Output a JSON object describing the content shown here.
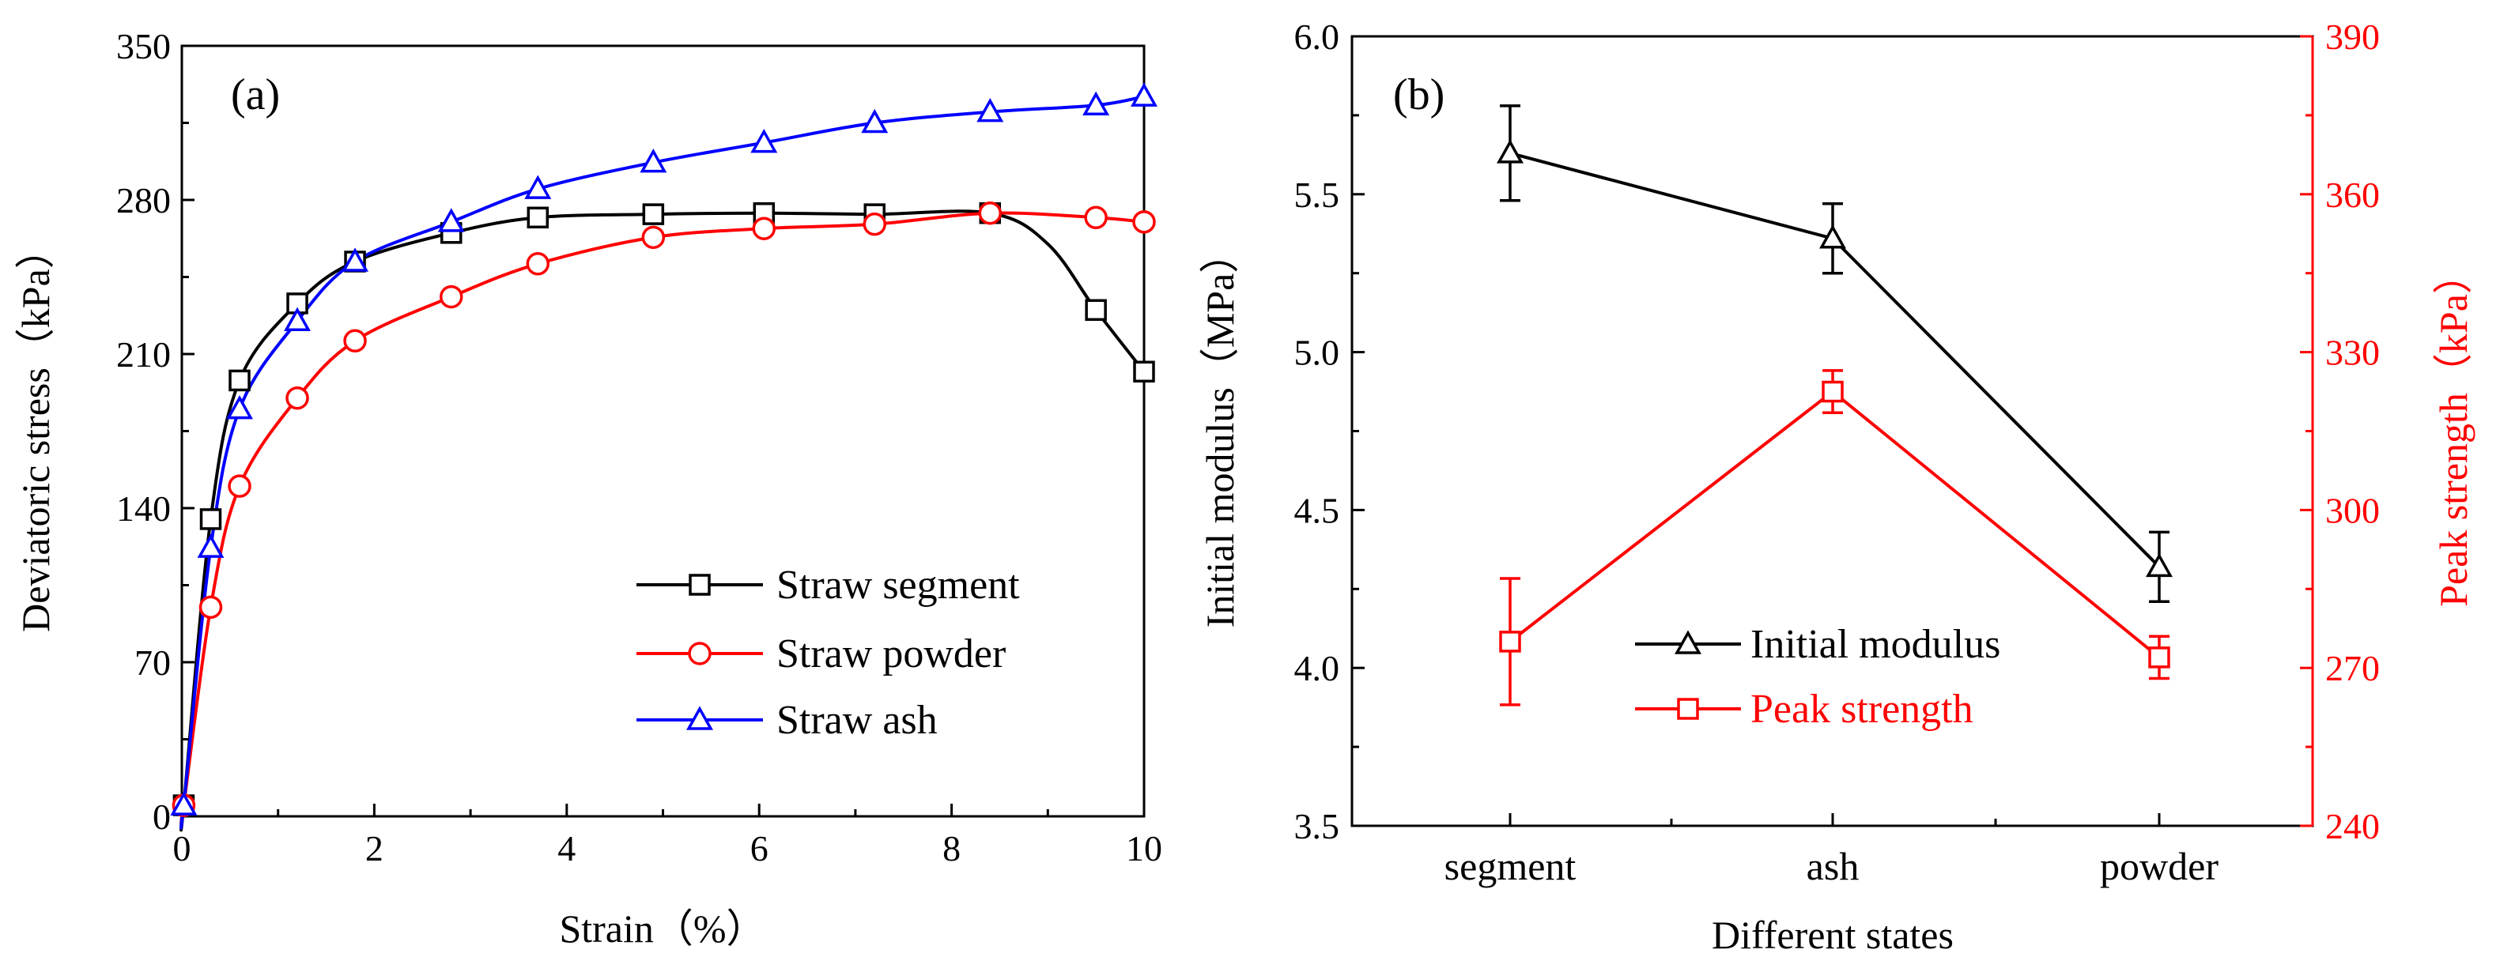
{
  "chart_data": [
    {
      "panel_label": "(a)",
      "type": "line",
      "xlabel": "Strain（%）",
      "ylabel": "Deviatoric stress（kPa）",
      "xlim": [
        0,
        10
      ],
      "ylim": [
        0,
        350
      ],
      "xticks": [
        0,
        2,
        4,
        6,
        8,
        10
      ],
      "yticks": [
        0,
        70,
        140,
        210,
        280,
        350
      ],
      "legend_position": "lower-right",
      "series": [
        {
          "name": "Straw segment",
          "color": "#000000",
          "marker": "square",
          "x": [
            0,
            0.02,
            0.3,
            0.6,
            1.2,
            1.8,
            2.8,
            3.7,
            4.9,
            6.05,
            7.2,
            8.4,
            9.0,
            9.5,
            10.0
          ],
          "y": [
            0,
            5,
            135,
            198,
            233,
            252,
            265,
            272,
            273.5,
            274,
            273.5,
            274,
            260,
            230,
            202
          ],
          "marker_x": [
            0.02,
            0.3,
            0.6,
            1.2,
            1.8,
            2.8,
            3.7,
            4.9,
            6.05,
            7.2,
            8.4,
            9.5,
            10.0
          ],
          "marker_y": [
            5,
            135,
            198,
            233,
            252,
            265,
            272,
            273.5,
            274,
            273.5,
            274,
            230,
            202
          ]
        },
        {
          "name": "Straw powder",
          "color": "#ff0000",
          "marker": "circle",
          "x": [
            0,
            0.02,
            0.3,
            0.6,
            1.2,
            1.8,
            2.8,
            3.7,
            4.9,
            6.05,
            7.2,
            8.4,
            9.5,
            10.0
          ],
          "y": [
            0,
            5,
            95,
            150,
            190,
            216,
            236,
            251,
            263,
            267,
            269,
            274,
            272,
            270
          ],
          "marker_x": [
            0.02,
            0.3,
            0.6,
            1.2,
            1.8,
            2.8,
            3.7,
            4.9,
            6.05,
            7.2,
            8.4,
            9.5,
            10.0
          ],
          "marker_y": [
            5,
            95,
            150,
            190,
            216,
            236,
            251,
            263,
            267,
            269,
            274,
            272,
            270
          ]
        },
        {
          "name": "Straw ash",
          "color": "#0000ff",
          "marker": "triangle",
          "x": [
            0,
            0.02,
            0.3,
            0.6,
            1.2,
            1.8,
            2.8,
            3.7,
            4.9,
            6.05,
            7.2,
            8.4,
            9.5,
            10.0
          ],
          "y": [
            0,
            5,
            122,
            185,
            225,
            252,
            270,
            285,
            297,
            306,
            315,
            320,
            323,
            327
          ],
          "marker_x": [
            0.02,
            0.3,
            0.6,
            1.2,
            1.8,
            2.8,
            3.7,
            4.9,
            6.05,
            7.2,
            8.4,
            9.5,
            10.0
          ],
          "marker_y": [
            5,
            122,
            185,
            225,
            252,
            270,
            285,
            297,
            306,
            315,
            320,
            323,
            327
          ]
        }
      ]
    },
    {
      "panel_label": "(b)",
      "type": "line",
      "xlabel": "Different states",
      "ylabel": "Initial modulus（MPa）",
      "ylabel_right": "Peak strength（kPa）",
      "categories": [
        "segment",
        "ash",
        "powder"
      ],
      "ylim": [
        3.5,
        6.0
      ],
      "ylim_right": [
        240,
        390
      ],
      "yticks": [
        "3.5",
        "4.0",
        "4.5",
        "5.0",
        "5.5",
        "6.0"
      ],
      "yticks_right": [
        240,
        270,
        300,
        330,
        360,
        390
      ],
      "legend_position": "bottom-center",
      "series": [
        {
          "name": "Initial modulus",
          "axis": "left",
          "color": "#000000",
          "marker": "triangle",
          "values": [
            5.63,
            5.36,
            4.32
          ],
          "errors": [
            0.15,
            0.11,
            0.11
          ]
        },
        {
          "name": "Peak strength",
          "axis": "right",
          "color": "#ff0000",
          "marker": "square",
          "values": [
            275,
            322.5,
            272
          ],
          "errors": [
            12,
            4,
            4
          ]
        }
      ]
    }
  ]
}
